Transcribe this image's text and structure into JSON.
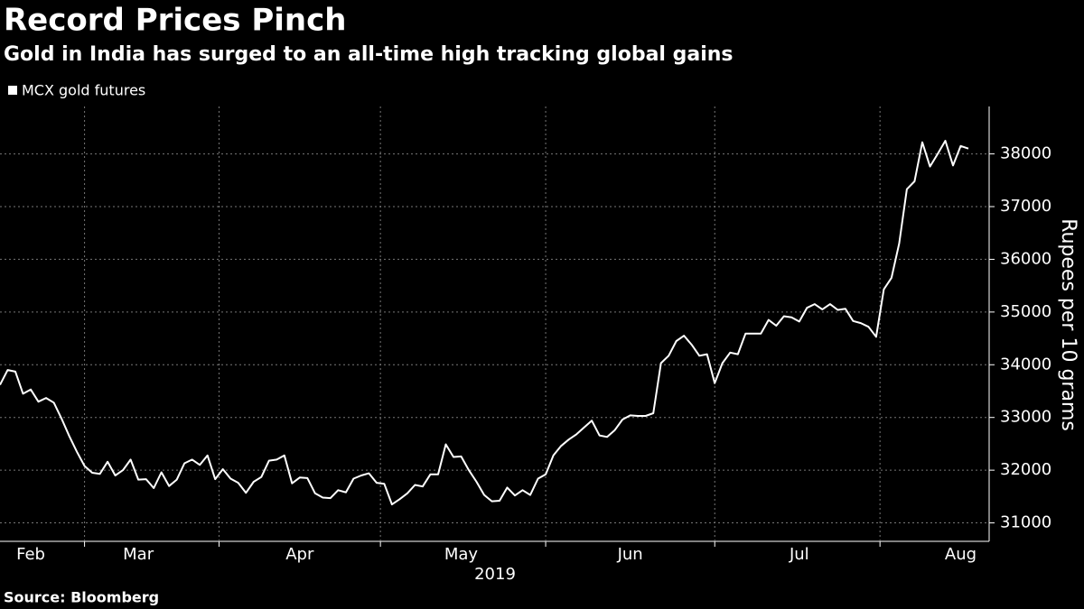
{
  "chart_data": {
    "type": "line",
    "title": "Record Prices Pinch",
    "subtitle": "Gold in India has surged to an all-time high tracking global gains",
    "x_label": "2019",
    "y_label": "Rupees per 10 grams",
    "source": "Source: Bloomberg",
    "categories": [
      null,
      null,
      null,
      null,
      "Feb",
      null,
      null,
      null,
      null,
      null,
      null,
      null,
      null,
      null,
      null,
      null,
      null,
      null,
      "Mar",
      null,
      null,
      null,
      null,
      null,
      null,
      null,
      null,
      null,
      null,
      null,
      null,
      null,
      null,
      null,
      null,
      null,
      null,
      null,
      null,
      "Apr",
      null,
      null,
      null,
      null,
      null,
      null,
      null,
      null,
      null,
      null,
      null,
      null,
      null,
      null,
      null,
      null,
      null,
      null,
      null,
      null,
      "May",
      null,
      null,
      null,
      null,
      null,
      null,
      null,
      null,
      null,
      null,
      null,
      null,
      null,
      null,
      null,
      null,
      null,
      null,
      null,
      null,
      null,
      "Jun",
      null,
      null,
      null,
      null,
      null,
      null,
      null,
      null,
      null,
      null,
      null,
      null,
      null,
      null,
      null,
      null,
      null,
      null,
      null,
      null,
      null,
      "Jul",
      null,
      null,
      null,
      null,
      null,
      null,
      null,
      null,
      null,
      null,
      null,
      null,
      null,
      null,
      null,
      null,
      null,
      null,
      null,
      null,
      "Aug",
      null
    ],
    "series": [
      {
        "name": "MCX gold futures",
        "color": "#ffffff",
        "values": [
          33620,
          33900,
          33870,
          33450,
          33530,
          33300,
          33370,
          33280,
          32980,
          32650,
          32350,
          32080,
          31950,
          31930,
          32160,
          31900,
          32000,
          32200,
          31820,
          31830,
          31660,
          31960,
          31700,
          31820,
          32130,
          32200,
          32100,
          32280,
          31830,
          32020,
          31840,
          31760,
          31570,
          31780,
          31870,
          32180,
          32200,
          32280,
          31750,
          31860,
          31850,
          31560,
          31480,
          31470,
          31620,
          31580,
          31840,
          31900,
          31940,
          31760,
          31740,
          31350,
          31450,
          31560,
          31720,
          31690,
          31920,
          31920,
          32490,
          32250,
          32260,
          32000,
          31780,
          31530,
          31410,
          31420,
          31670,
          31520,
          31620,
          31530,
          31840,
          31920,
          32280,
          32460,
          32580,
          32680,
          32810,
          32940,
          32660,
          32630,
          32760,
          32960,
          33040,
          33030,
          33030,
          33080,
          34030,
          34170,
          34450,
          34550,
          34380,
          34170,
          34200,
          33650,
          34030,
          34230,
          34200,
          34590,
          34590,
          34590,
          34850,
          34740,
          34920,
          34900,
          34820,
          35080,
          35150,
          35050,
          35150,
          35040,
          35060,
          34830,
          34790,
          34720,
          34530,
          35430,
          35650,
          36300,
          37330,
          37480,
          38220,
          37760,
          38000,
          38250,
          37780,
          38150,
          38100
        ]
      }
    ],
    "ylim": [
      30650,
      38900
    ],
    "yticks": [
      31000,
      32000,
      33000,
      34000,
      35000,
      36000,
      37000,
      38000
    ],
    "grid": true,
    "legend": "top-left"
  }
}
